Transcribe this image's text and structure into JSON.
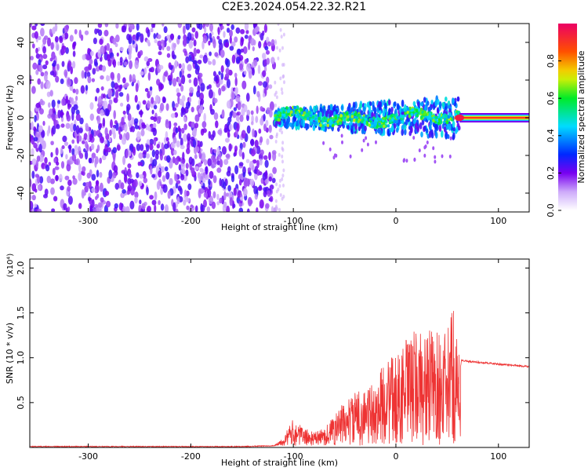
{
  "title": "C2E3.2024.054.22.32.R21",
  "chart_data": [
    {
      "type": "heatmap",
      "xlabel": "Height of straight line (km)",
      "ylabel": "Frequency (Hz)",
      "xlim": [
        -357,
        130
      ],
      "ylim": [
        -50,
        50
      ],
      "xticks": [
        -300,
        -200,
        -100,
        0,
        100
      ],
      "xtick_labels": [
        "-300",
        "-200",
        "-100",
        "0",
        "100"
      ],
      "yticks": [
        -40,
        -20,
        0,
        20,
        40
      ],
      "ytick_labels": [
        "-40",
        "-20",
        "0",
        "20",
        "40"
      ],
      "colorbar": {
        "label": "Normalized spectral amplitude",
        "range": [
          0,
          1
        ],
        "ticks": [
          0.0,
          0.2,
          0.4,
          0.6,
          0.8
        ],
        "tick_labels": [
          "0.0",
          "0.2",
          "0.4",
          "0.6",
          "0.8"
        ]
      },
      "regions": [
        {
          "x_range": [
            -357,
            -118
          ],
          "freq_range": [
            -50,
            50
          ],
          "level": "0.1-0.3",
          "pattern": "noise"
        },
        {
          "x_range": [
            -118,
            62
          ],
          "freq_range": [
            -10,
            12
          ],
          "level": "0.3-0.7",
          "pattern": "signal band near 0 Hz"
        },
        {
          "x_range": [
            62,
            130
          ],
          "freq_range": [
            -2,
            2
          ],
          "level": "0.8-1.0",
          "pattern": "steady tone at 0 Hz"
        }
      ]
    },
    {
      "type": "line",
      "xlabel": "Height of straight line (km)",
      "ylabel": "SNR (10 * v/v)",
      "y_multiplier": "(x10⁴)",
      "xlim": [
        -357,
        130
      ],
      "ylim": [
        0,
        2.1
      ],
      "xticks": [
        -300,
        -200,
        -100,
        0,
        100
      ],
      "xtick_labels": [
        "-300",
        "-200",
        "-100",
        "0",
        "100"
      ],
      "yticks": [
        0.5,
        1.0,
        1.5,
        2.0
      ],
      "ytick_labels": [
        "0.5",
        "1.0",
        "1.5",
        "2.0"
      ],
      "series_color": "#ee3333",
      "x": [
        -357,
        -300,
        -250,
        -200,
        -150,
        -118,
        -110,
        -100,
        -90,
        -80,
        -70,
        -60,
        -50,
        -40,
        -30,
        -20,
        -10,
        0,
        10,
        20,
        30,
        40,
        50,
        55,
        60,
        63,
        64,
        70,
        80,
        90,
        100,
        110,
        120,
        130
      ],
      "y": [
        0.01,
        0.01,
        0.01,
        0.01,
        0.01,
        0.02,
        0.1,
        0.3,
        0.2,
        0.15,
        0.2,
        0.35,
        0.5,
        0.6,
        0.65,
        0.7,
        1.0,
        1.0,
        1.2,
        1.3,
        1.3,
        1.3,
        1.25,
        1.6,
        1.3,
        0.9,
        0.97,
        0.96,
        0.95,
        0.94,
        0.93,
        0.92,
        0.91,
        0.9
      ]
    }
  ]
}
